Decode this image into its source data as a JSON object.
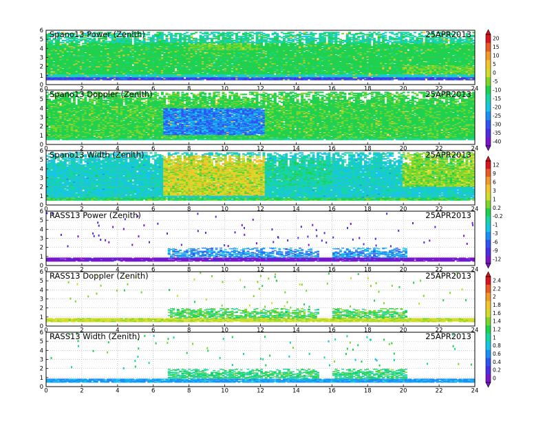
{
  "chart_data": {
    "type": "heatmap",
    "date_label": "25APR2013",
    "x_ticks": [
      0,
      2,
      4,
      6,
      8,
      10,
      12,
      14,
      16,
      18,
      20,
      22,
      24
    ],
    "y_ticks": [
      0,
      1,
      2,
      3,
      4,
      5,
      6
    ],
    "xlim": [
      0,
      24
    ],
    "ylim": [
      0,
      6
    ],
    "grid": true,
    "panels": [
      {
        "title": "Spano13 Power (Zenith)",
        "colorbar": 0,
        "style": "profiler-power"
      },
      {
        "title": "Spano13 Doppler (Zenith)",
        "colorbar": 0,
        "style": "profiler-doppler"
      },
      {
        "title": "Spano13 Width (Zenith)",
        "colorbar": 1,
        "style": "profiler-width"
      },
      {
        "title": "RASS13 Power (Zenith)",
        "colorbar": 1,
        "style": "rass-power"
      },
      {
        "title": "RASS13 Doppler (Zenith)",
        "colorbar": 2,
        "style": "rass-doppler"
      },
      {
        "title": "RASS13 Width (Zenith)",
        "colorbar": 2,
        "style": "rass-width"
      }
    ],
    "colorbars": [
      {
        "labels": [
          "20",
          "15",
          "10",
          "5",
          "0",
          "-5",
          "-10",
          "-15",
          "-20",
          "-25",
          "-30",
          "-35",
          "-40"
        ]
      },
      {
        "labels": [
          "12",
          "9",
          "6",
          "3",
          "1",
          "0.2",
          "-0.2",
          "-1",
          "-3",
          "-6",
          "-9",
          "-12"
        ]
      },
      {
        "labels": [
          "2.4",
          "2.2",
          "2",
          "1.8",
          "1.6",
          "1.4",
          "1.2",
          "1",
          "0.8",
          "0.6",
          "0.4",
          "0.2",
          "0"
        ]
      }
    ],
    "palette": [
      "#7b16c8",
      "#4b2ee0",
      "#2f54f2",
      "#1c8ff5",
      "#18c4e8",
      "#17d6a5",
      "#1ed24f",
      "#7dd62a",
      "#d4dc2a",
      "#f3c52a",
      "#f19a2a",
      "#ea5a25",
      "#d9141e"
    ]
  }
}
